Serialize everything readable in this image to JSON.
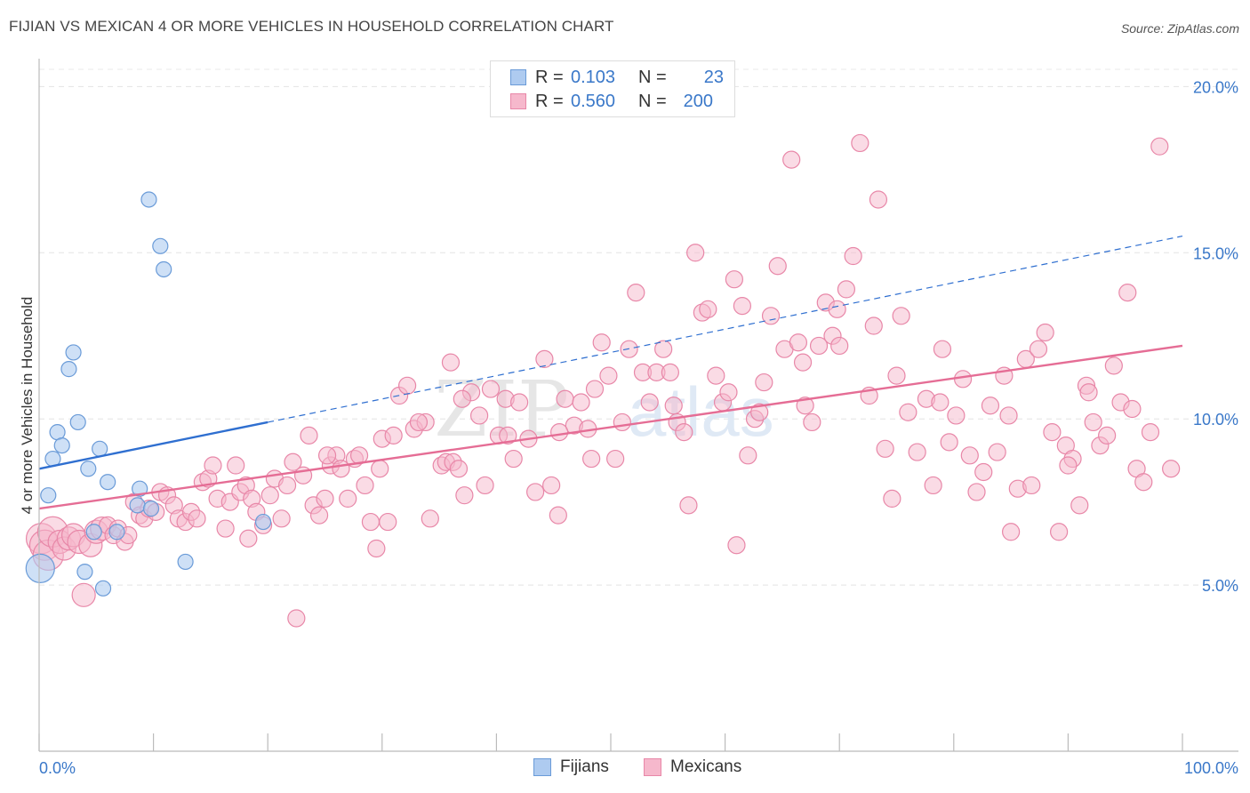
{
  "title": "FIJIAN VS MEXICAN 4 OR MORE VEHICLES IN HOUSEHOLD CORRELATION CHART",
  "source": "Source: ZipAtlas.com",
  "watermark": {
    "zip": "ZIP",
    "atlas": "atlas"
  },
  "legend": {
    "r_label": "R =",
    "n_label": "N =",
    "fijians": {
      "r": "0.103",
      "n": "23"
    },
    "mexicans": {
      "r": "0.560",
      "n": "200"
    }
  },
  "colors": {
    "fijian_fill": "#aecbf0",
    "fijian_stroke": "#6a9bd8",
    "fijian_line": "#2f6fd0",
    "mexican_fill": "#f6b8cc",
    "mexican_stroke": "#e887a8",
    "mexican_line": "#e56d95",
    "axis_text": "#3a78c9"
  },
  "chart_data": {
    "type": "scatter",
    "title": "FIJIAN VS MEXICAN 4 OR MORE VEHICLES IN HOUSEHOLD CORRELATION CHART",
    "xlabel": "",
    "ylabel": "4 or more Vehicles in Household",
    "x_tick_labels": [
      "0.0%",
      "100.0%"
    ],
    "y_tick_labels": [
      "5.0%",
      "10.0%",
      "15.0%",
      "20.0%"
    ],
    "xlim": [
      0,
      100
    ],
    "ylim": [
      0,
      21
    ],
    "grid": true,
    "legend_position": "bottom",
    "series": [
      {
        "name": "Fijians",
        "trend": {
          "x": [
            0,
            20,
            100
          ],
          "y": [
            8.5,
            9.9,
            15.5
          ],
          "solid_until_x": 20
        },
        "points": [
          [
            0.1,
            5.5
          ],
          [
            0.8,
            7.7
          ],
          [
            1.2,
            8.8
          ],
          [
            1.6,
            9.6
          ],
          [
            2.0,
            9.2
          ],
          [
            2.6,
            11.5
          ],
          [
            3.0,
            12.0
          ],
          [
            3.4,
            9.9
          ],
          [
            4.0,
            5.4
          ],
          [
            4.3,
            8.5
          ],
          [
            5.3,
            9.1
          ],
          [
            5.6,
            4.9
          ],
          [
            6.0,
            8.1
          ],
          [
            6.8,
            6.6
          ],
          [
            8.6,
            7.4
          ],
          [
            8.8,
            7.9
          ],
          [
            9.6,
            16.6
          ],
          [
            9.8,
            7.3
          ],
          [
            10.6,
            15.2
          ],
          [
            10.9,
            14.5
          ],
          [
            12.8,
            5.7
          ],
          [
            19.6,
            6.9
          ],
          [
            4.8,
            6.6
          ]
        ]
      },
      {
        "name": "Mexicans",
        "trend": {
          "x": [
            0,
            100
          ],
          "y": [
            7.3,
            12.2
          ]
        },
        "points": [
          [
            0.2,
            6.4
          ],
          [
            0.5,
            6.2
          ],
          [
            0.8,
            5.9
          ],
          [
            1.2,
            6.6
          ],
          [
            1.8,
            6.3
          ],
          [
            2.2,
            6.1
          ],
          [
            2.6,
            6.4
          ],
          [
            3.0,
            6.5
          ],
          [
            3.5,
            6.3
          ],
          [
            3.9,
            4.7
          ],
          [
            4.5,
            6.2
          ],
          [
            5.0,
            6.6
          ],
          [
            5.5,
            6.7
          ],
          [
            6.0,
            6.8
          ],
          [
            6.5,
            6.5
          ],
          [
            6.9,
            6.7
          ],
          [
            7.5,
            6.3
          ],
          [
            7.8,
            6.5
          ],
          [
            8.3,
            7.5
          ],
          [
            8.8,
            7.1
          ],
          [
            9.2,
            7.0
          ],
          [
            9.6,
            7.3
          ],
          [
            10.2,
            7.2
          ],
          [
            10.6,
            7.8
          ],
          [
            11.2,
            7.7
          ],
          [
            11.8,
            7.4
          ],
          [
            12.2,
            7.0
          ],
          [
            12.8,
            6.9
          ],
          [
            13.3,
            7.2
          ],
          [
            13.8,
            7.0
          ],
          [
            14.3,
            8.1
          ],
          [
            14.8,
            8.2
          ],
          [
            15.2,
            8.6
          ],
          [
            15.6,
            7.6
          ],
          [
            16.3,
            6.7
          ],
          [
            16.7,
            7.5
          ],
          [
            17.2,
            8.6
          ],
          [
            17.6,
            7.8
          ],
          [
            18.1,
            8.0
          ],
          [
            18.6,
            7.6
          ],
          [
            19.0,
            7.2
          ],
          [
            19.6,
            6.8
          ],
          [
            20.2,
            7.7
          ],
          [
            20.6,
            8.2
          ],
          [
            21.2,
            7.0
          ],
          [
            21.7,
            8.0
          ],
          [
            22.2,
            8.7
          ],
          [
            23.1,
            8.3
          ],
          [
            23.6,
            9.5
          ],
          [
            24.0,
            7.4
          ],
          [
            24.5,
            7.1
          ],
          [
            25.0,
            7.6
          ],
          [
            25.5,
            8.6
          ],
          [
            26.0,
            8.9
          ],
          [
            26.4,
            8.5
          ],
          [
            27.0,
            7.6
          ],
          [
            27.6,
            8.8
          ],
          [
            28.0,
            8.9
          ],
          [
            28.5,
            8.0
          ],
          [
            29.0,
            6.9
          ],
          [
            29.5,
            6.1
          ],
          [
            30.0,
            9.4
          ],
          [
            30.5,
            6.9
          ],
          [
            31.5,
            10.7
          ],
          [
            31.0,
            9.5
          ],
          [
            32.2,
            11.0
          ],
          [
            32.8,
            9.7
          ],
          [
            33.8,
            9.9
          ],
          [
            34.2,
            7.0
          ],
          [
            35.2,
            8.6
          ],
          [
            35.6,
            8.7
          ],
          [
            36.2,
            8.7
          ],
          [
            36.7,
            8.5
          ],
          [
            37.2,
            7.7
          ],
          [
            37.8,
            10.8
          ],
          [
            38.5,
            10.1
          ],
          [
            39.0,
            8.0
          ],
          [
            39.5,
            10.9
          ],
          [
            40.2,
            9.5
          ],
          [
            40.8,
            10.6
          ],
          [
            41.5,
            8.8
          ],
          [
            42.0,
            10.5
          ],
          [
            42.8,
            9.4
          ],
          [
            43.4,
            7.8
          ],
          [
            44.2,
            11.8
          ],
          [
            44.8,
            8.0
          ],
          [
            45.4,
            7.1
          ],
          [
            46.0,
            10.6
          ],
          [
            46.8,
            9.8
          ],
          [
            47.4,
            10.5
          ],
          [
            48.0,
            9.7
          ],
          [
            48.6,
            10.9
          ],
          [
            49.2,
            12.3
          ],
          [
            49.8,
            11.3
          ],
          [
            50.4,
            8.8
          ],
          [
            51.0,
            9.9
          ],
          [
            51.6,
            12.1
          ],
          [
            52.2,
            13.8
          ],
          [
            52.8,
            11.4
          ],
          [
            53.4,
            10.5
          ],
          [
            54.0,
            11.4
          ],
          [
            54.6,
            12.1
          ],
          [
            55.2,
            11.4
          ],
          [
            55.8,
            9.9
          ],
          [
            56.4,
            9.6
          ],
          [
            56.8,
            7.4
          ],
          [
            57.4,
            15.0
          ],
          [
            58.0,
            13.2
          ],
          [
            58.5,
            13.3
          ],
          [
            59.2,
            11.3
          ],
          [
            59.8,
            10.5
          ],
          [
            60.3,
            10.8
          ],
          [
            60.8,
            14.2
          ],
          [
            61.5,
            13.4
          ],
          [
            62.0,
            8.9
          ],
          [
            62.6,
            10.0
          ],
          [
            63.4,
            11.1
          ],
          [
            64.0,
            13.1
          ],
          [
            64.6,
            14.6
          ],
          [
            65.2,
            12.1
          ],
          [
            65.8,
            17.8
          ],
          [
            66.4,
            12.3
          ],
          [
            67.0,
            10.4
          ],
          [
            67.6,
            9.9
          ],
          [
            68.2,
            12.2
          ],
          [
            68.8,
            13.5
          ],
          [
            69.4,
            12.5
          ],
          [
            70.0,
            12.2
          ],
          [
            70.6,
            13.9
          ],
          [
            71.2,
            14.9
          ],
          [
            71.8,
            18.3
          ],
          [
            72.6,
            10.7
          ],
          [
            73.4,
            16.6
          ],
          [
            74.0,
            9.1
          ],
          [
            74.6,
            7.6
          ],
          [
            75.4,
            13.1
          ],
          [
            76.0,
            10.2
          ],
          [
            76.8,
            9.0
          ],
          [
            77.6,
            10.6
          ],
          [
            78.2,
            8.0
          ],
          [
            79.0,
            12.1
          ],
          [
            79.6,
            9.3
          ],
          [
            80.2,
            10.1
          ],
          [
            80.8,
            11.2
          ],
          [
            81.4,
            8.9
          ],
          [
            82.0,
            7.8
          ],
          [
            82.6,
            8.4
          ],
          [
            83.2,
            10.4
          ],
          [
            83.8,
            9.0
          ],
          [
            84.4,
            11.3
          ],
          [
            85.0,
            6.6
          ],
          [
            85.6,
            7.9
          ],
          [
            86.3,
            11.8
          ],
          [
            86.8,
            8.0
          ],
          [
            87.4,
            12.1
          ],
          [
            88.0,
            12.6
          ],
          [
            88.6,
            9.6
          ],
          [
            89.2,
            6.6
          ],
          [
            89.8,
            9.2
          ],
          [
            90.4,
            8.8
          ],
          [
            91.0,
            7.4
          ],
          [
            91.6,
            11.0
          ],
          [
            92.2,
            9.9
          ],
          [
            92.8,
            9.2
          ],
          [
            93.4,
            9.5
          ],
          [
            94.0,
            11.6
          ],
          [
            94.6,
            10.5
          ],
          [
            95.2,
            13.8
          ],
          [
            96.0,
            8.5
          ],
          [
            96.6,
            8.1
          ],
          [
            97.2,
            9.6
          ],
          [
            98.0,
            18.2
          ],
          [
            99.0,
            8.5
          ],
          [
            33.2,
            9.9
          ],
          [
            36.0,
            11.7
          ],
          [
            48.3,
            8.8
          ],
          [
            55.5,
            10.4
          ],
          [
            61.0,
            6.2
          ],
          [
            63.0,
            10.2
          ],
          [
            66.8,
            11.7
          ],
          [
            69.8,
            13.3
          ],
          [
            73.0,
            12.8
          ],
          [
            75.0,
            11.3
          ],
          [
            78.8,
            10.5
          ],
          [
            84.8,
            10.1
          ],
          [
            90.0,
            8.6
          ],
          [
            91.8,
            10.8
          ],
          [
            95.6,
            10.3
          ],
          [
            45.5,
            9.6
          ],
          [
            41.0,
            9.5
          ],
          [
            37.0,
            10.6
          ],
          [
            29.8,
            8.5
          ],
          [
            25.2,
            8.9
          ],
          [
            22.5,
            4.0
          ],
          [
            18.3,
            6.4
          ]
        ]
      }
    ]
  }
}
